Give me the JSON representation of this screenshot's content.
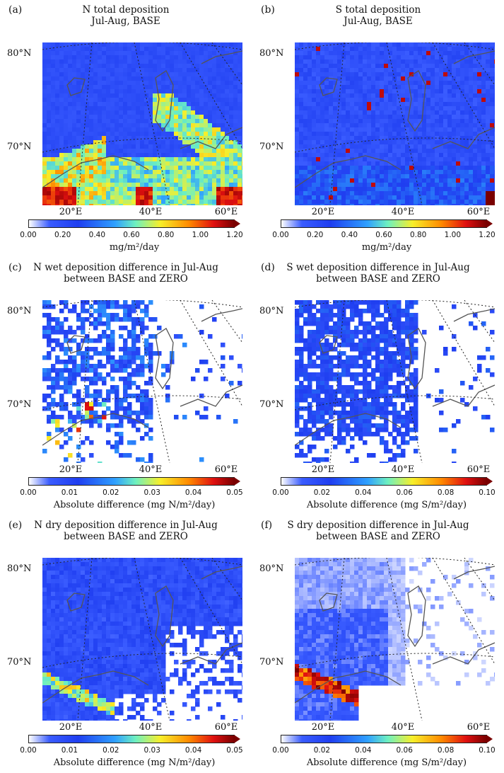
{
  "chart_data": [
    {
      "panel": "(a)",
      "type": "heatmap",
      "title_line1": "N total deposition",
      "title_line2": "Jul-Aug, BASE",
      "lat_labels": [
        "80°N",
        "70°N"
      ],
      "lon_labels": [
        "20°E",
        "40°E",
        "60°E"
      ],
      "cbar_ticks": [
        "0.00",
        "0.20",
        "0.40",
        "0.60",
        "0.80",
        "1.00",
        "1.20"
      ],
      "vmin": 0,
      "vmax": 1.2,
      "unit": "mg/m²/day",
      "mode": "total"
    },
    {
      "panel": "(b)",
      "type": "heatmap",
      "title_line1": "S total deposition",
      "title_line2": "Jul-Aug, BASE",
      "lat_labels": [
        "80°N",
        "70°N"
      ],
      "lon_labels": [
        "20°E",
        "40°E",
        "60°E"
      ],
      "cbar_ticks": [
        "0.00",
        "0.20",
        "0.40",
        "0.60",
        "0.80",
        "1.00",
        "1.20"
      ],
      "vmin": 0,
      "vmax": 1.2,
      "unit": "mg/m²/day",
      "mode": "total_s"
    },
    {
      "panel": "(c)",
      "type": "heatmap",
      "title_line1": "N wet deposition difference in Jul-Aug",
      "title_line2": "between BASE and ZERO",
      "lat_labels": [
        "80°N",
        "70°N"
      ],
      "lon_labels": [
        "20°E",
        "40°E",
        "60°E"
      ],
      "cbar_ticks": [
        "0.00",
        "0.01",
        "0.02",
        "0.03",
        "0.04",
        "0.05"
      ],
      "vmin": 0,
      "vmax": 0.05,
      "unit": "Absolute difference (mg N/m²/day)",
      "mode": "wet"
    },
    {
      "panel": "(d)",
      "type": "heatmap",
      "title_line1": "S wet deposition difference in Jul-Aug",
      "title_line2": "between BASE and ZERO",
      "lat_labels": [
        "80°N",
        "70°N"
      ],
      "lon_labels": [
        "20°E",
        "40°E",
        "60°E"
      ],
      "cbar_ticks": [
        "0.00",
        "0.02",
        "0.04",
        "0.06",
        "0.08",
        "0.10"
      ],
      "vmin": 0,
      "vmax": 0.1,
      "unit": "Absolute difference (mg S/m²/day)",
      "mode": "wet_s"
    },
    {
      "panel": "(e)",
      "type": "heatmap",
      "title_line1": "N dry deposition difference in Jul-Aug",
      "title_line2": "between BASE and ZERO",
      "lat_labels": [
        "80°N",
        "70°N"
      ],
      "lon_labels": [
        "20°E",
        "40°E",
        "60°E"
      ],
      "cbar_ticks": [
        "0.00",
        "0.01",
        "0.02",
        "0.03",
        "0.04",
        "0.05"
      ],
      "vmin": 0,
      "vmax": 0.05,
      "unit": "Absolute difference (mg N/m²/day)",
      "mode": "dry"
    },
    {
      "panel": "(f)",
      "type": "heatmap",
      "title_line1": "S dry deposition difference in Jul-Aug",
      "title_line2": "between BASE and ZERO",
      "lat_labels": [
        "80°N",
        "70°N"
      ],
      "lon_labels": [
        "20°E",
        "40°E",
        "60°E"
      ],
      "cbar_ticks": [
        "0.00",
        "0.02",
        "0.04",
        "0.06",
        "0.08",
        "0.10"
      ],
      "vmin": 0,
      "vmax": 0.1,
      "unit": "Absolute difference (mg S/m²/day)",
      "mode": "dry_s"
    }
  ],
  "colormap": [
    "#ffffff",
    "#3a5cff",
    "#1f3ef0",
    "#2fa0ff",
    "#6ef0c0",
    "#f7ef2a",
    "#ff8a00",
    "#e01010",
    "#7a0000"
  ]
}
